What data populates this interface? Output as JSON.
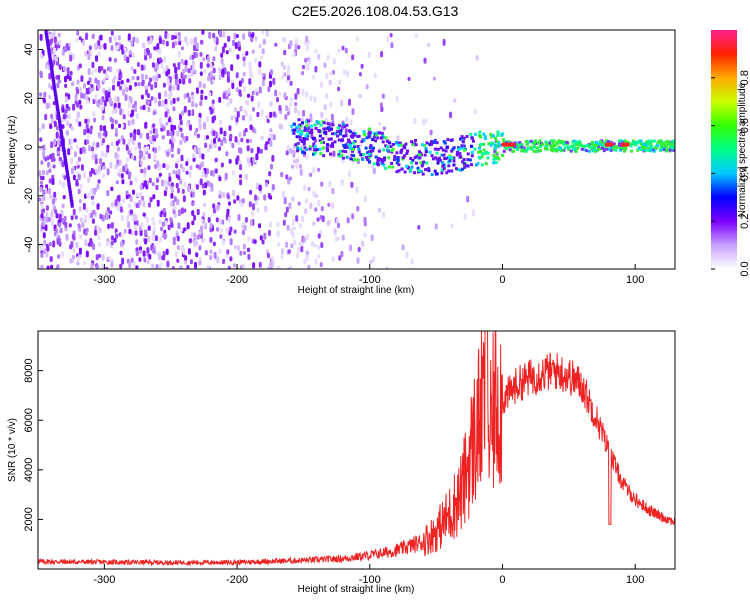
{
  "title": "C2E5.2026.108.04.53.G13",
  "chart_data": [
    {
      "type": "heatmap",
      "xlabel": "Height of straight line (km)",
      "ylabel": "Frequency (Hz)",
      "xlim": [
        -350,
        130
      ],
      "ylim": [
        -50,
        48
      ],
      "xticks": [
        -300,
        -200,
        -100,
        0,
        100
      ],
      "yticks": [
        -40,
        -20,
        0,
        20,
        40
      ],
      "xtick_labels": [
        "-300",
        "-200",
        "-100",
        "0",
        "100"
      ],
      "ytick_labels": [
        "-40",
        "-20",
        "0",
        "20",
        "40"
      ],
      "colorbar": {
        "label": "Normalized spectral amplitude",
        "range": [
          0.0,
          1.0
        ],
        "ticks": [
          0.0,
          0.2,
          0.4,
          0.6,
          0.8
        ],
        "tick_labels": [
          "0.0",
          "0.2",
          "0.4",
          "0.6",
          "0.8"
        ],
        "colormap": "rainbow"
      },
      "ridge": [
        {
          "x": -150,
          "y": 5
        },
        {
          "x": -120,
          "y": 3
        },
        {
          "x": -100,
          "y": 1
        },
        {
          "x": -80,
          "y": -3
        },
        {
          "x": -60,
          "y": -4
        },
        {
          "x": -40,
          "y": -3
        },
        {
          "x": -25,
          "y": -1
        },
        {
          "x": -10,
          "y": 1
        },
        {
          "x": 0,
          "y": 1
        },
        {
          "x": 50,
          "y": 1
        },
        {
          "x": 100,
          "y": 1
        },
        {
          "x": 130,
          "y": 1
        }
      ]
    },
    {
      "type": "line",
      "xlabel": "Height of straight line (km)",
      "ylabel": "SNR (10 * v/v)",
      "xlim": [
        -350,
        130
      ],
      "ylim": [
        0,
        9600
      ],
      "xticks": [
        -300,
        -200,
        -100,
        0,
        100
      ],
      "yticks": [
        2000,
        4000,
        6000,
        8000
      ],
      "xtick_labels": [
        "-300",
        "-200",
        "-100",
        "0",
        "100"
      ],
      "ytick_labels": [
        "2000",
        "4000",
        "6000",
        "8000"
      ],
      "series": [
        {
          "name": "SNR",
          "color": "#ee2222",
          "x": [
            -350,
            -300,
            -250,
            -200,
            -150,
            -120,
            -100,
            -80,
            -60,
            -50,
            -40,
            -30,
            -25,
            -20,
            -15,
            -12,
            -10,
            -5,
            0,
            10,
            20,
            30,
            40,
            50,
            60,
            70,
            80,
            90,
            100,
            110,
            120,
            130
          ],
          "y": [
            300,
            280,
            260,
            270,
            350,
            420,
            550,
            750,
            1100,
            1500,
            2200,
            3200,
            4500,
            5500,
            6500,
            7500,
            5000,
            7000,
            6800,
            7400,
            7700,
            7900,
            8000,
            7800,
            7400,
            6200,
            4800,
            3500,
            2800,
            2400,
            2100,
            1900
          ]
        }
      ]
    }
  ]
}
